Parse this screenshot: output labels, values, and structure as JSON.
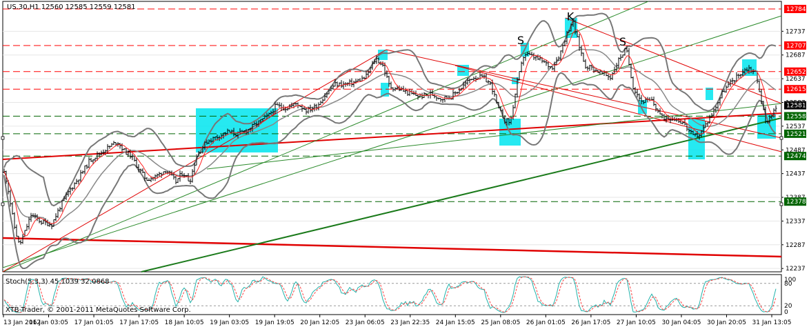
{
  "header": {
    "symbol_info": "US.30,H1  12560 12585 12559 12581"
  },
  "indicator": {
    "label": "Stoch(5,3,3) 45.1039 32.0868"
  },
  "copyright": "XTB-Trader, © 2001-2011 MetaQuotes Software Corp.",
  "annotations": [
    {
      "text": "K",
      "x": 827,
      "y": 12760
    },
    {
      "text": "S",
      "x": 755,
      "y": 12710
    },
    {
      "text": "S",
      "x": 903,
      "y": 12707
    }
  ],
  "chart_data": {
    "type": "candlestick",
    "y_axis": {
      "min": 12230,
      "max": 12800,
      "ticks": [
        12237,
        12287,
        12337,
        12387,
        12437,
        12487,
        12537,
        12587,
        12637,
        12687,
        12737
      ]
    },
    "x_labels": [
      "13 Jan 2012",
      "16 Jan 03:05",
      "17 Jan 01:05",
      "17 Jan 17:05",
      "18 Jan 10:05",
      "19 Jan 03:05",
      "19 Jan 19:05",
      "20 Jan 12:05",
      "23 Jan 06:05",
      "23 Jan 22:35",
      "24 Jan 15:05",
      "25 Jan 08:05",
      "26 Jan 01:05",
      "26 Jan 17:05",
      "27 Jan 10:05",
      "30 Jan 04:05",
      "30 Jan 20:05",
      "31 Jan 13:05"
    ],
    "horizontal_levels": [
      {
        "value": 12784,
        "label": "12784",
        "color": "#ff0000"
      },
      {
        "value": 12707,
        "label": "12707",
        "color": "#ff0000"
      },
      {
        "value": 12652,
        "label": "12652",
        "color": "#ff0000"
      },
      {
        "value": 12615,
        "label": "12615",
        "color": "#ff0000"
      },
      {
        "value": 12558,
        "label": "12558",
        "color": "#006400"
      },
      {
        "value": 12521,
        "label": "12521",
        "color": "#006400"
      },
      {
        "value": 12474,
        "label": "12474",
        "color": "#006400"
      },
      {
        "value": 12378,
        "label": "12378",
        "color": "#006400"
      }
    ],
    "current_price": {
      "value": 12581,
      "label": "12581"
    },
    "stoch_levels": {
      "upper": 80,
      "lower": 20,
      "max_label": "100",
      "min_label": "0"
    },
    "anchors": [
      [
        0,
        12470
      ],
      [
        10,
        12420
      ],
      [
        20,
        12330
      ],
      [
        28,
        12285
      ],
      [
        35,
        12310
      ],
      [
        45,
        12350
      ],
      [
        60,
        12335
      ],
      [
        75,
        12330
      ],
      [
        88,
        12370
      ],
      [
        100,
        12400
      ],
      [
        115,
        12430
      ],
      [
        130,
        12465
      ],
      [
        145,
        12480
      ],
      [
        160,
        12495
      ],
      [
        170,
        12505
      ],
      [
        180,
        12485
      ],
      [
        190,
        12475
      ],
      [
        200,
        12450
      ],
      [
        212,
        12425
      ],
      [
        225,
        12430
      ],
      [
        240,
        12445
      ],
      [
        255,
        12420
      ],
      [
        265,
        12440
      ],
      [
        275,
        12420
      ],
      [
        285,
        12475
      ],
      [
        300,
        12505
      ],
      [
        315,
        12515
      ],
      [
        330,
        12525
      ],
      [
        345,
        12520
      ],
      [
        360,
        12530
      ],
      [
        375,
        12545
      ],
      [
        390,
        12560
      ],
      [
        400,
        12580
      ],
      [
        415,
        12575
      ],
      [
        430,
        12585
      ],
      [
        445,
        12570
      ],
      [
        460,
        12580
      ],
      [
        470,
        12600
      ],
      [
        485,
        12625
      ],
      [
        500,
        12625
      ],
      [
        515,
        12630
      ],
      [
        530,
        12640
      ],
      [
        545,
        12680
      ],
      [
        555,
        12665
      ],
      [
        565,
        12620
      ],
      [
        580,
        12615
      ],
      [
        595,
        12605
      ],
      [
        610,
        12600
      ],
      [
        625,
        12605
      ],
      [
        640,
        12595
      ],
      [
        655,
        12600
      ],
      [
        670,
        12620
      ],
      [
        685,
        12640
      ],
      [
        700,
        12640
      ],
      [
        712,
        12625
      ],
      [
        722,
        12575
      ],
      [
        732,
        12550
      ],
      [
        740,
        12545
      ],
      [
        750,
        12630
      ],
      [
        760,
        12690
      ],
      [
        770,
        12685
      ],
      [
        785,
        12675
      ],
      [
        800,
        12660
      ],
      [
        812,
        12690
      ],
      [
        820,
        12725
      ],
      [
        830,
        12760
      ],
      [
        838,
        12715
      ],
      [
        848,
        12665
      ],
      [
        858,
        12660
      ],
      [
        870,
        12650
      ],
      [
        885,
        12640
      ],
      [
        898,
        12680
      ],
      [
        908,
        12700
      ],
      [
        918,
        12620
      ],
      [
        930,
        12590
      ],
      [
        945,
        12590
      ],
      [
        960,
        12555
      ],
      [
        975,
        12555
      ],
      [
        990,
        12545
      ],
      [
        1005,
        12515
      ],
      [
        1015,
        12520
      ],
      [
        1025,
        12545
      ],
      [
        1035,
        12570
      ],
      [
        1048,
        12610
      ],
      [
        1060,
        12630
      ],
      [
        1075,
        12650
      ],
      [
        1085,
        12660
      ],
      [
        1095,
        12650
      ],
      [
        1103,
        12600
      ],
      [
        1110,
        12545
      ],
      [
        1118,
        12560
      ],
      [
        1125,
        12575
      ]
    ]
  }
}
